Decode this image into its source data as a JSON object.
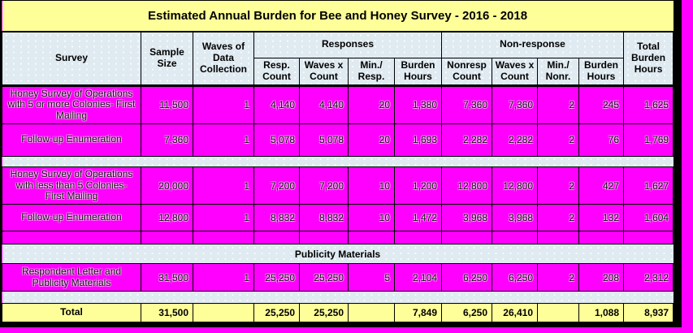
{
  "title": "Estimated Annual Burden for Bee and Honey Survey - 2016 - 2018",
  "colors": {
    "page_background": "#ff00ff",
    "data_row_fill": "#ff00ff",
    "header_fill": "#dfeaf1",
    "title_fill": "#ffff99",
    "total_row_fill": "#ffff99",
    "border": "#000000",
    "text": "#000000"
  },
  "header": {
    "survey": "Survey",
    "sample_size": "Sample Size",
    "waves": "Waves of Data Collection",
    "responses_group": "Responses",
    "nonresponse_group": "Non-response",
    "resp_count": "Resp. Count",
    "resp_waves_x_count": "Waves x Count",
    "min_per_resp": "Min./ Resp.",
    "resp_burden_hours": "Burden Hours",
    "nonresp_count": "Nonresp Count",
    "nonresp_waves_x_count": "Waves x Count",
    "min_per_nonr": "Min./ Nonr.",
    "nonresp_burden_hours": "Burden Hours",
    "total_burden_hours": "Total Burden Hours"
  },
  "table": {
    "columns": [
      "Survey",
      "Sample Size",
      "Waves of Data Collection",
      "Resp. Count",
      "Waves x Count",
      "Min./ Resp.",
      "Burden Hours",
      "Nonresp Count",
      "Waves x Count",
      "Min./ Nonr.",
      "Burden Hours",
      "Total Burden Hours"
    ],
    "rows": [
      {
        "type": "data",
        "label": "Honey Survey of Operations with 5 or more Colonies- First Mailing",
        "values": [
          "11,500",
          "1",
          "4,140",
          "4,140",
          "20",
          "1,380",
          "7,360",
          "7,360",
          "2",
          "245",
          "1,625"
        ]
      },
      {
        "type": "data",
        "label": "Follow-up Enumeration",
        "values": [
          "7,360",
          "1",
          "5,078",
          "5,078",
          "20",
          "1,693",
          "2,282",
          "2,282",
          "2",
          "76",
          "1,769"
        ]
      },
      {
        "type": "spacer",
        "label": ""
      },
      {
        "type": "data",
        "label": "Honey Survey of Operations with less than 5 Colonies- First Mailing",
        "values": [
          "20,000",
          "1",
          "7,200",
          "7,200",
          "10",
          "1,200",
          "12,800",
          "12,800",
          "2",
          "427",
          "1,627"
        ]
      },
      {
        "type": "data",
        "label": "Follow-up Enumeration",
        "values": [
          "12,800",
          "1",
          "8,832",
          "8,832",
          "10",
          "1,472",
          "3,968",
          "3,968",
          "2",
          "132",
          "1,604"
        ]
      },
      {
        "type": "empty",
        "label": "",
        "values": [
          "",
          "",
          "",
          "",
          "",
          "",
          "",
          "",
          "",
          "",
          ""
        ]
      },
      {
        "type": "band",
        "label": "Publicity Materials"
      },
      {
        "type": "data",
        "label": "Respondent Letter and Publicity Materials",
        "values": [
          "31,500",
          "1",
          "25,250",
          "25,250",
          "5",
          "2,104",
          "6,250",
          "6,250",
          "2",
          "208",
          "2,312"
        ]
      },
      {
        "type": "spacer",
        "label": ""
      },
      {
        "type": "total",
        "label": "Total",
        "values": [
          "31,500",
          "",
          "25,250",
          "25,250",
          "",
          "7,849",
          "6,250",
          "26,410",
          "",
          "1,088",
          "8,937"
        ]
      }
    ]
  }
}
